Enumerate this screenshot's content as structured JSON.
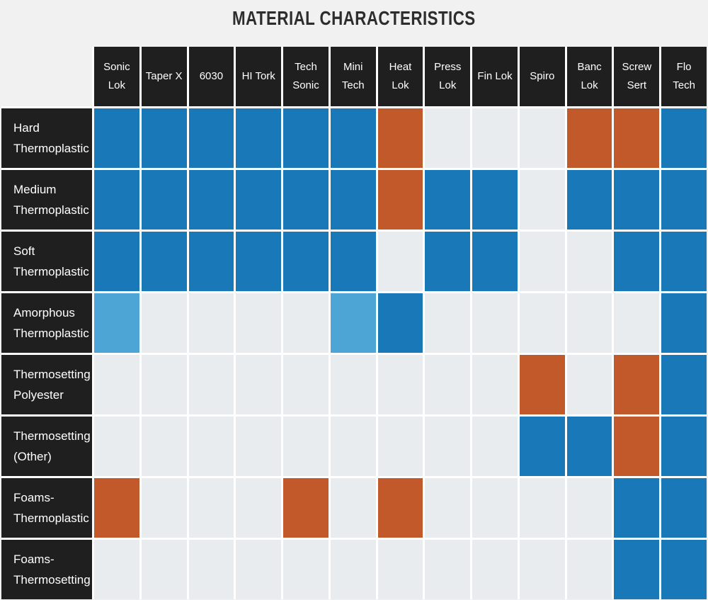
{
  "title": "MATERIAL CHARACTERISTICS",
  "theme": {
    "page_bg": "#f1f1f1",
    "gap_color": "#ffffff",
    "header_bg": "#1f1f1f",
    "header_text": "#ffffff",
    "title_color": "#2d2d2d",
    "cell_colors": {
      "blue": "#1878b8",
      "lightblue": "#4da5d6",
      "orange": "#c2592a",
      "none": "#e8ecef"
    }
  },
  "chart_data": {
    "type": "heatmap",
    "title": "MATERIAL CHARACTERISTICS",
    "columns": [
      "Sonic Lok",
      "Taper X",
      "6030",
      "HI Tork",
      "Tech Sonic",
      "Mini Tech",
      "Heat Lok",
      "Press Lok",
      "Fin Lok",
      "Spiro",
      "Banc Lok",
      "Screw Sert",
      "Flo Tech"
    ],
    "rows": [
      "Hard Thermoplastic",
      "Medium Thermoplastic",
      "Soft Thermoplastic",
      "Amorphous Thermoplastic",
      "Thermosetting Polyester",
      "Thermosetting (Other)",
      "Foams-Thermoplastic",
      "Foams-Thermosetting"
    ],
    "values": [
      [
        "blue",
        "blue",
        "blue",
        "blue",
        "blue",
        "blue",
        "orange",
        "none",
        "none",
        "none",
        "orange",
        "orange",
        "blue"
      ],
      [
        "blue",
        "blue",
        "blue",
        "blue",
        "blue",
        "blue",
        "orange",
        "blue",
        "blue",
        "none",
        "blue",
        "blue",
        "blue"
      ],
      [
        "blue",
        "blue",
        "blue",
        "blue",
        "blue",
        "blue",
        "none",
        "blue",
        "blue",
        "none",
        "none",
        "blue",
        "blue"
      ],
      [
        "lightblue",
        "none",
        "none",
        "none",
        "none",
        "lightblue",
        "blue",
        "none",
        "none",
        "none",
        "none",
        "none",
        "blue"
      ],
      [
        "none",
        "none",
        "none",
        "none",
        "none",
        "none",
        "none",
        "none",
        "none",
        "orange",
        "none",
        "orange",
        "blue"
      ],
      [
        "none",
        "none",
        "none",
        "none",
        "none",
        "none",
        "none",
        "none",
        "none",
        "blue",
        "blue",
        "orange",
        "blue"
      ],
      [
        "orange",
        "none",
        "none",
        "none",
        "orange",
        "none",
        "orange",
        "none",
        "none",
        "none",
        "none",
        "blue",
        "blue"
      ],
      [
        "none",
        "none",
        "none",
        "none",
        "none",
        "none",
        "none",
        "none",
        "none",
        "none",
        "none",
        "blue",
        "blue"
      ]
    ],
    "legend_position": "none",
    "grid": "white gaps between cells"
  }
}
